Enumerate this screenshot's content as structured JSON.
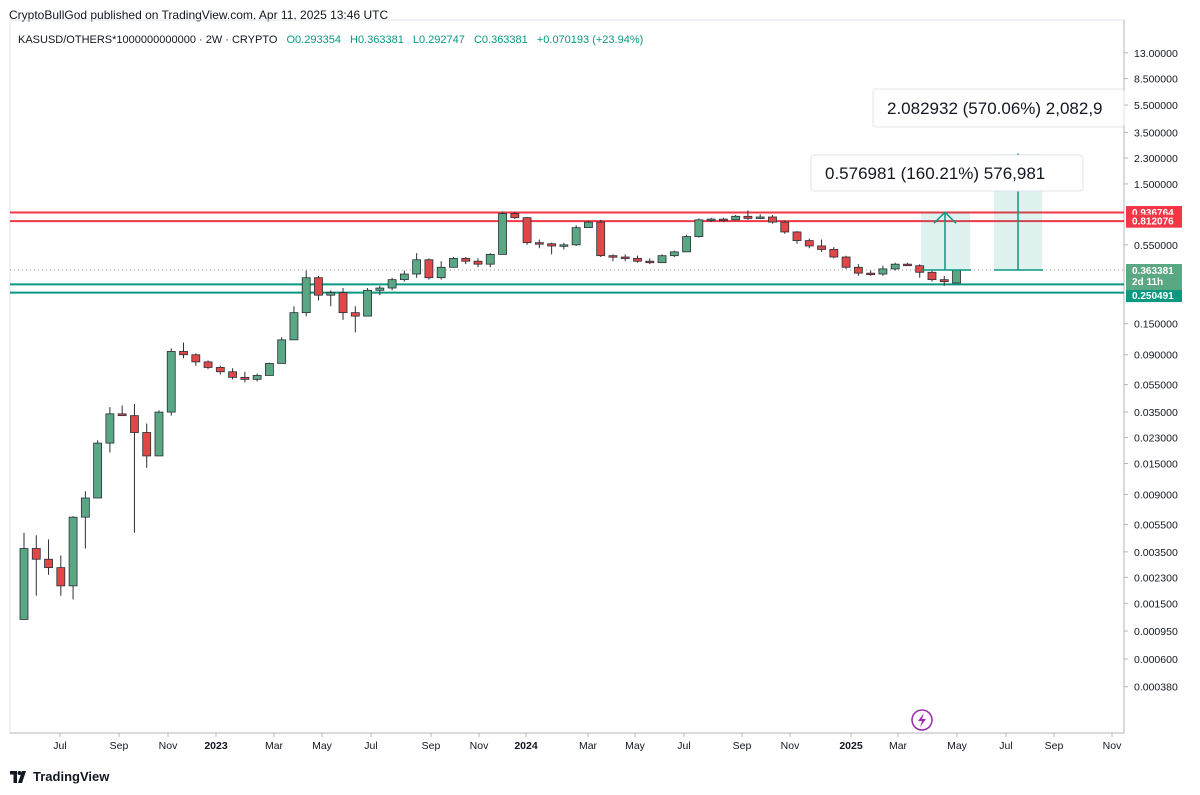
{
  "header": {
    "publisher": "CryptoBullGod published on TradingView.com, Apr 11, 2025 13:46 UTC",
    "symbol": "KASUSD/OTHERS*1000000000000 · 2W · CRYPTO",
    "open": "O0.293354",
    "high": "H0.363381",
    "low": "L0.292747",
    "close": "C0.363381",
    "change": "+0.070193 (+23.94%)"
  },
  "footer": {
    "brand": "TradingView"
  },
  "colors": {
    "up": "#5aa783",
    "down": "#e04848",
    "resistance": "#f23645",
    "support": "#089981",
    "projection": "#089981"
  },
  "chart_data": {
    "type": "candlestick",
    "scale": "log",
    "time_axis": [
      "Jul",
      "Sep",
      "Nov",
      "2023",
      "Mar",
      "May",
      "Jul",
      "Sep",
      "Nov",
      "2024",
      "Mar",
      "May",
      "Jul",
      "Sep",
      "Nov",
      "2025",
      "Mar",
      "May",
      "Jul",
      "Sep",
      "Nov"
    ],
    "price_axis": [
      "13.00000",
      "8.500000",
      "5.500000",
      "3.500000",
      "2.300000",
      "1.500000",
      "0.550000",
      "0.150000",
      "0.090000",
      "0.055000",
      "0.035000",
      "0.023000",
      "0.015000",
      "0.009000",
      "0.005500",
      "0.003500",
      "0.002300",
      "0.001500",
      "0.000950",
      "0.000600",
      "0.000380"
    ],
    "candles": [
      {
        "o": 0.00115,
        "h": 0.0048,
        "l": 0.00115,
        "c": 0.0037
      },
      {
        "o": 0.0037,
        "h": 0.0046,
        "l": 0.0017,
        "c": 0.0031
      },
      {
        "o": 0.0031,
        "h": 0.0043,
        "l": 0.0024,
        "c": 0.0027
      },
      {
        "o": 0.0027,
        "h": 0.0033,
        "l": 0.0017,
        "c": 0.002
      },
      {
        "o": 0.002,
        "h": 0.0063,
        "l": 0.0016,
        "c": 0.0062
      },
      {
        "o": 0.0062,
        "h": 0.0095,
        "l": 0.0037,
        "c": 0.0085
      },
      {
        "o": 0.0085,
        "h": 0.022,
        "l": 0.0085,
        "c": 0.021
      },
      {
        "o": 0.021,
        "h": 0.038,
        "l": 0.018,
        "c": 0.034
      },
      {
        "o": 0.034,
        "h": 0.039,
        "l": 0.033,
        "c": 0.033
      },
      {
        "o": 0.033,
        "h": 0.04,
        "l": 0.0048,
        "c": 0.025
      },
      {
        "o": 0.025,
        "h": 0.029,
        "l": 0.014,
        "c": 0.017
      },
      {
        "o": 0.017,
        "h": 0.036,
        "l": 0.017,
        "c": 0.035
      },
      {
        "o": 0.035,
        "h": 0.1,
        "l": 0.033,
        "c": 0.095
      },
      {
        "o": 0.095,
        "h": 0.11,
        "l": 0.085,
        "c": 0.09
      },
      {
        "o": 0.09,
        "h": 0.092,
        "l": 0.075,
        "c": 0.08
      },
      {
        "o": 0.08,
        "h": 0.082,
        "l": 0.071,
        "c": 0.073
      },
      {
        "o": 0.073,
        "h": 0.075,
        "l": 0.065,
        "c": 0.068
      },
      {
        "o": 0.068,
        "h": 0.072,
        "l": 0.06,
        "c": 0.062
      },
      {
        "o": 0.062,
        "h": 0.068,
        "l": 0.057,
        "c": 0.06
      },
      {
        "o": 0.06,
        "h": 0.066,
        "l": 0.058,
        "c": 0.064
      },
      {
        "o": 0.064,
        "h": 0.079,
        "l": 0.064,
        "c": 0.078
      },
      {
        "o": 0.078,
        "h": 0.12,
        "l": 0.078,
        "c": 0.115
      },
      {
        "o": 0.115,
        "h": 0.2,
        "l": 0.115,
        "c": 0.18
      },
      {
        "o": 0.18,
        "h": 0.36,
        "l": 0.17,
        "c": 0.32
      },
      {
        "o": 0.32,
        "h": 0.33,
        "l": 0.22,
        "c": 0.24
      },
      {
        "o": 0.24,
        "h": 0.26,
        "l": 0.2,
        "c": 0.25
      },
      {
        "o": 0.25,
        "h": 0.27,
        "l": 0.16,
        "c": 0.18
      },
      {
        "o": 0.18,
        "h": 0.2,
        "l": 0.13,
        "c": 0.17
      },
      {
        "o": 0.17,
        "h": 0.27,
        "l": 0.17,
        "c": 0.26
      },
      {
        "o": 0.26,
        "h": 0.28,
        "l": 0.24,
        "c": 0.27
      },
      {
        "o": 0.27,
        "h": 0.32,
        "l": 0.26,
        "c": 0.31
      },
      {
        "o": 0.31,
        "h": 0.36,
        "l": 0.3,
        "c": 0.34
      },
      {
        "o": 0.34,
        "h": 0.48,
        "l": 0.32,
        "c": 0.43
      },
      {
        "o": 0.43,
        "h": 0.44,
        "l": 0.31,
        "c": 0.32
      },
      {
        "o": 0.32,
        "h": 0.42,
        "l": 0.31,
        "c": 0.38
      },
      {
        "o": 0.38,
        "h": 0.45,
        "l": 0.38,
        "c": 0.44
      },
      {
        "o": 0.44,
        "h": 0.45,
        "l": 0.4,
        "c": 0.42
      },
      {
        "o": 0.42,
        "h": 0.44,
        "l": 0.38,
        "c": 0.4
      },
      {
        "o": 0.4,
        "h": 0.48,
        "l": 0.38,
        "c": 0.47
      },
      {
        "o": 0.47,
        "h": 0.95,
        "l": 0.47,
        "c": 0.92
      },
      {
        "o": 0.92,
        "h": 0.95,
        "l": 0.84,
        "c": 0.86
      },
      {
        "o": 0.86,
        "h": 0.87,
        "l": 0.55,
        "c": 0.57
      },
      {
        "o": 0.57,
        "h": 0.6,
        "l": 0.52,
        "c": 0.56
      },
      {
        "o": 0.56,
        "h": 0.57,
        "l": 0.47,
        "c": 0.54
      },
      {
        "o": 0.54,
        "h": 0.57,
        "l": 0.51,
        "c": 0.55
      },
      {
        "o": 0.55,
        "h": 0.76,
        "l": 0.54,
        "c": 0.73
      },
      {
        "o": 0.73,
        "h": 0.82,
        "l": 0.73,
        "c": 0.8
      },
      {
        "o": 0.8,
        "h": 0.83,
        "l": 0.45,
        "c": 0.46
      },
      {
        "o": 0.46,
        "h": 0.47,
        "l": 0.42,
        "c": 0.45
      },
      {
        "o": 0.45,
        "h": 0.47,
        "l": 0.42,
        "c": 0.44
      },
      {
        "o": 0.44,
        "h": 0.46,
        "l": 0.41,
        "c": 0.42
      },
      {
        "o": 0.42,
        "h": 0.44,
        "l": 0.4,
        "c": 0.41
      },
      {
        "o": 0.41,
        "h": 0.47,
        "l": 0.41,
        "c": 0.46
      },
      {
        "o": 0.46,
        "h": 0.5,
        "l": 0.45,
        "c": 0.49
      },
      {
        "o": 0.49,
        "h": 0.65,
        "l": 0.49,
        "c": 0.63
      },
      {
        "o": 0.63,
        "h": 0.85,
        "l": 0.62,
        "c": 0.83
      },
      {
        "o": 0.83,
        "h": 0.86,
        "l": 0.8,
        "c": 0.84
      },
      {
        "o": 0.84,
        "h": 0.86,
        "l": 0.8,
        "c": 0.83
      },
      {
        "o": 0.83,
        "h": 0.9,
        "l": 0.82,
        "c": 0.88
      },
      {
        "o": 0.88,
        "h": 0.97,
        "l": 0.83,
        "c": 0.85
      },
      {
        "o": 0.85,
        "h": 0.91,
        "l": 0.84,
        "c": 0.87
      },
      {
        "o": 0.87,
        "h": 0.9,
        "l": 0.78,
        "c": 0.8
      },
      {
        "o": 0.8,
        "h": 0.82,
        "l": 0.66,
        "c": 0.68
      },
      {
        "o": 0.68,
        "h": 0.69,
        "l": 0.56,
        "c": 0.59
      },
      {
        "o": 0.59,
        "h": 0.61,
        "l": 0.52,
        "c": 0.54
      },
      {
        "o": 0.54,
        "h": 0.6,
        "l": 0.49,
        "c": 0.51
      },
      {
        "o": 0.51,
        "h": 0.53,
        "l": 0.44,
        "c": 0.45
      },
      {
        "o": 0.45,
        "h": 0.46,
        "l": 0.37,
        "c": 0.38
      },
      {
        "o": 0.38,
        "h": 0.4,
        "l": 0.33,
        "c": 0.345
      },
      {
        "o": 0.345,
        "h": 0.36,
        "l": 0.33,
        "c": 0.34
      },
      {
        "o": 0.34,
        "h": 0.39,
        "l": 0.33,
        "c": 0.37
      },
      {
        "o": 0.37,
        "h": 0.41,
        "l": 0.36,
        "c": 0.4
      },
      {
        "o": 0.4,
        "h": 0.41,
        "l": 0.39,
        "c": 0.39
      },
      {
        "o": 0.39,
        "h": 0.4,
        "l": 0.32,
        "c": 0.35
      },
      {
        "o": 0.35,
        "h": 0.36,
        "l": 0.3,
        "c": 0.31
      },
      {
        "o": 0.31,
        "h": 0.33,
        "l": 0.28,
        "c": 0.3
      },
      {
        "o": 0.293354,
        "h": 0.363381,
        "l": 0.292747,
        "c": 0.363381
      }
    ],
    "horizontal_lines": [
      {
        "price": 0.936764,
        "label": "0.936764",
        "color": "#f23645"
      },
      {
        "price": 0.812076,
        "label": "0.812076",
        "color": "#f23645"
      },
      {
        "price": 0.28687,
        "label": "0.286870",
        "color": "#089981"
      },
      {
        "price": 0.250491,
        "label": "0.250491",
        "color": "#089981"
      }
    ],
    "current_price": {
      "label": "0.363381",
      "countdown": "2d 11h"
    },
    "projections": [
      {
        "from": 0.363381,
        "to": 0.940362,
        "label": "0.576981 (160.21%) 576,981"
      },
      {
        "from": 0.363381,
        "to": 2.446313,
        "label": "2.082932 (570.06%) 2,082,9"
      }
    ]
  }
}
